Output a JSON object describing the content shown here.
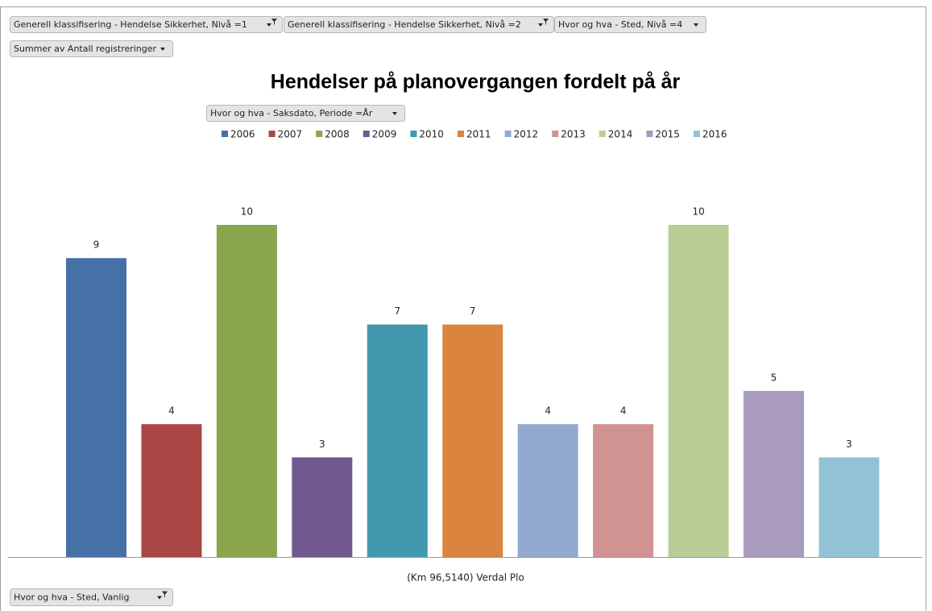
{
  "filters": [
    "Generell klassifisering - Hendelse Sikkerhet, Nivå =1",
    "Generell klassifisering - Hendelse Sikkerhet, Nivå =2",
    "Hvor og hva - Sted, Nivå =4"
  ],
  "value_field": "Summer av Antall registreringer",
  "legend_filter": "Hvor og hva - Saksdato, Periode =År",
  "axis_filter": "Hvor og hva - Sted, Vanlig",
  "chart_data": {
    "type": "bar",
    "title": "Hendelser på planovergangen fordelt på år",
    "categories": [
      "(Km 96,5140) Verdal  Plo"
    ],
    "series": [
      {
        "name": "2006",
        "color": "#4571a7",
        "values": [
          9
        ]
      },
      {
        "name": "2007",
        "color": "#aa4643",
        "values": [
          4
        ]
      },
      {
        "name": "2008",
        "color": "#89a54e",
        "values": [
          10
        ]
      },
      {
        "name": "2009",
        "color": "#71588f",
        "values": [
          3
        ]
      },
      {
        "name": "2010",
        "color": "#4198af",
        "values": [
          7
        ]
      },
      {
        "name": "2011",
        "color": "#db843d",
        "values": [
          7
        ]
      },
      {
        "name": "2012",
        "color": "#93a9cf",
        "values": [
          4
        ]
      },
      {
        "name": "2013",
        "color": "#d19392",
        "values": [
          4
        ]
      },
      {
        "name": "2014",
        "color": "#b9cd96",
        "values": [
          10
        ]
      },
      {
        "name": "2015",
        "color": "#a99bbd",
        "values": [
          5
        ]
      },
      {
        "name": "2016",
        "color": "#92c3d4",
        "values": [
          3
        ]
      }
    ],
    "legend": "top"
  }
}
